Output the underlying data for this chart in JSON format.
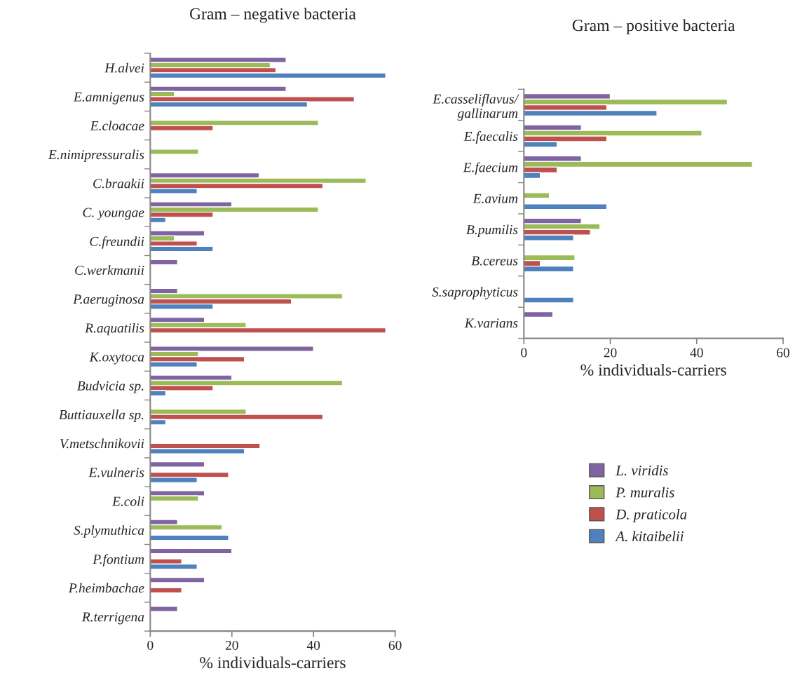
{
  "chart_data": [
    {
      "type": "bar",
      "orientation": "horizontal",
      "title": "Gram – negative bacteria",
      "xlabel": "% individuals-carriers",
      "xlim": [
        0,
        60
      ],
      "xticks": [
        0,
        20,
        40,
        60
      ],
      "legend": "right",
      "categories": [
        "H.alvei",
        "E.amnigenus",
        "E.cloacae",
        "E.nimipressuralis",
        "C.braakii",
        "C. youngae",
        "C.freundii",
        "C.werkmanii",
        "P.aeruginosa",
        "R.aquatilis",
        "K.oxytoca",
        "Budvicia sp.",
        "Buttiauxella sp.",
        "V.metschnikovii",
        "E.vulneris",
        "E.coli",
        "S.plymuthica",
        "P.fontium",
        "P.heimbachae",
        "R.terrigena"
      ],
      "series": [
        {
          "name": "L. viridis",
          "color": "#8064a2",
          "values": [
            33.3,
            33.3,
            null,
            null,
            26.7,
            20,
            13.3,
            6.7,
            6.7,
            13.3,
            40,
            20,
            null,
            null,
            13.3,
            13.3,
            6.7,
            20,
            13.3,
            6.7
          ]
        },
        {
          "name": "P. muralis",
          "color": "#9bbb59",
          "values": [
            29.4,
            5.9,
            41.2,
            11.8,
            52.9,
            41.2,
            5.9,
            null,
            47.1,
            23.5,
            11.8,
            47.1,
            23.5,
            null,
            null,
            11.8,
            17.6,
            null,
            null,
            null
          ]
        },
        {
          "name": "D. praticola",
          "color": "#c0504d",
          "values": [
            30.8,
            50,
            15.4,
            null,
            42.3,
            15.4,
            11.5,
            null,
            34.6,
            57.7,
            23.1,
            15.4,
            42.3,
            26.9,
            19.2,
            null,
            null,
            7.7,
            7.7,
            null
          ]
        },
        {
          "name": "A. kitaibelii",
          "color": "#4f81bd",
          "values": [
            57.7,
            38.5,
            null,
            null,
            11.5,
            3.8,
            15.4,
            null,
            15.4,
            null,
            11.5,
            3.8,
            3.8,
            23.1,
            11.5,
            null,
            19.2,
            11.5,
            null,
            null
          ]
        }
      ]
    },
    {
      "type": "bar",
      "orientation": "horizontal",
      "title": "Gram – positive bacteria",
      "xlabel": "% individuals-carriers",
      "xlim": [
        0,
        60
      ],
      "xticks": [
        0,
        20,
        40,
        60
      ],
      "legend": false,
      "categories": [
        "E.casseliflavus/\ngallinarum",
        "E.faecalis",
        "E.faecium",
        "E.avium",
        "B.pumilis",
        "B.cereus",
        "S.saprophyticus",
        "K.varians"
      ],
      "series": [
        {
          "color": "#8064a2",
          "values": [
            20,
            13.3,
            13.3,
            null,
            13.3,
            null,
            null,
            6.7
          ]
        },
        {
          "color": "#9bbb59",
          "values": [
            47.1,
            41.2,
            52.9,
            5.9,
            17.6,
            11.8,
            null,
            null
          ]
        },
        {
          "color": "#c0504d",
          "values": [
            19.2,
            19.2,
            7.7,
            null,
            15.4,
            3.8,
            null,
            null
          ]
        },
        {
          "color": "#4f81bd",
          "values": [
            30.8,
            7.7,
            3.8,
            19.2,
            11.5,
            11.5,
            11.5,
            null
          ]
        }
      ]
    }
  ]
}
